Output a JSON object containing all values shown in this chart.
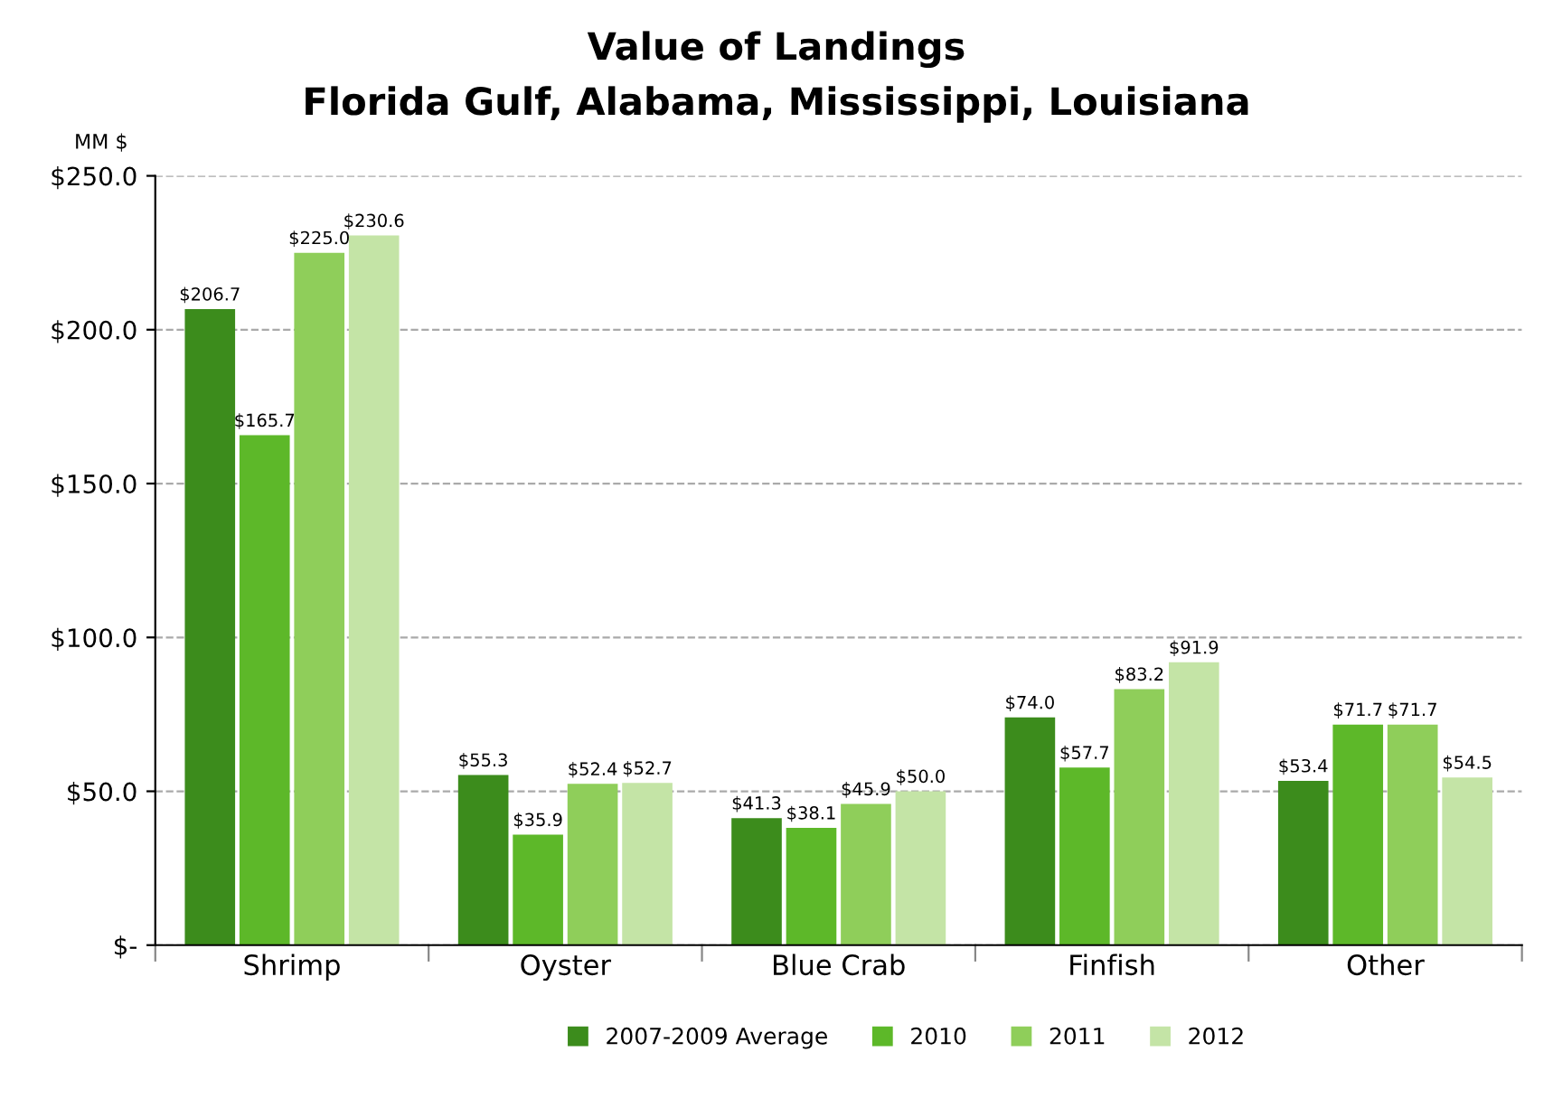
{
  "chart_data": {
    "type": "bar",
    "title": "Value of Landings",
    "subtitle": "Florida Gulf, Alabama, Mississippi, Louisiana",
    "ylabel": "MM $",
    "categories": [
      "Shrimp",
      "Oyster",
      "Blue Crab",
      "Finfish",
      "Other"
    ],
    "series": [
      {
        "name": "2007-2009 Average",
        "color": "#3c8c1c",
        "values": [
          206.7,
          55.3,
          41.3,
          74.0,
          53.4
        ],
        "value_labels": [
          "$206.7",
          "$55.3",
          "$41.3",
          "$74.0",
          "$53.4"
        ]
      },
      {
        "name": "2010",
        "color": "#5db829",
        "values": [
          165.7,
          35.9,
          38.1,
          57.7,
          71.7
        ],
        "value_labels": [
          "$165.7",
          "$35.9",
          "$38.1",
          "$57.7",
          "$71.7"
        ]
      },
      {
        "name": "2011",
        "color": "#8fce5a",
        "values": [
          225.0,
          52.4,
          45.9,
          83.2,
          71.7
        ],
        "value_labels": [
          "$225.0",
          "$52.4",
          "$45.9",
          "$83.2",
          "$71.7"
        ]
      },
      {
        "name": "2012",
        "color": "#c4e4a6",
        "values": [
          230.6,
          52.7,
          50.0,
          91.9,
          54.5
        ],
        "value_labels": [
          "$230.6",
          "$52.7",
          "$50.0",
          "$91.9",
          "$54.5"
        ]
      }
    ],
    "ylim": [
      0,
      250
    ],
    "yticks": [
      {
        "value": 0,
        "label": "$-"
      },
      {
        "value": 50,
        "label": "$50.0"
      },
      {
        "value": 100,
        "label": "$100.0"
      },
      {
        "value": 150,
        "label": "$150.0"
      },
      {
        "value": 200,
        "label": "$200.0"
      },
      {
        "value": 250,
        "label": "$250.0"
      }
    ],
    "grid": "y",
    "legend": "bottom"
  }
}
